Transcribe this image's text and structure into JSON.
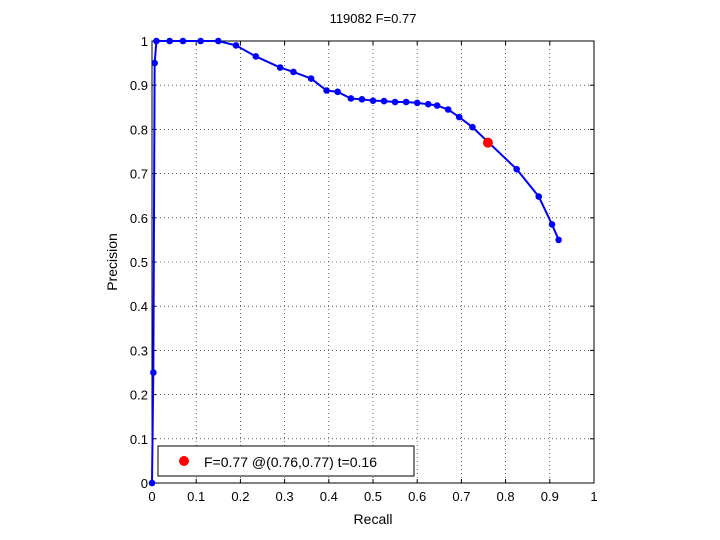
{
  "chart_data": {
    "type": "line",
    "title": "119082 F=0.77",
    "xlabel": "Recall",
    "ylabel": "Precision",
    "xlim": [
      0,
      1
    ],
    "ylim": [
      0,
      1
    ],
    "grid": true,
    "xticks": [
      "0",
      "0.1",
      "0.2",
      "0.3",
      "0.4",
      "0.5",
      "0.6",
      "0.7",
      "0.8",
      "0.9",
      "1"
    ],
    "yticks": [
      "0",
      "0.1",
      "0.2",
      "0.3",
      "0.4",
      "0.5",
      "0.6",
      "0.7",
      "0.8",
      "0.9",
      "1"
    ],
    "series": [
      {
        "color": "#0000ff",
        "x": [
          0.0,
          0.003,
          0.006,
          0.01,
          0.04,
          0.07,
          0.11,
          0.15,
          0.19,
          0.235,
          0.29,
          0.32,
          0.36,
          0.395,
          0.42,
          0.45,
          0.475,
          0.5,
          0.525,
          0.55,
          0.575,
          0.6,
          0.625,
          0.645,
          0.67,
          0.695,
          0.725,
          0.825,
          0.875,
          0.905,
          0.92
        ],
        "y": [
          0.0,
          0.25,
          0.95,
          1.0,
          1.0,
          1.0,
          1.0,
          1.0,
          0.99,
          0.965,
          0.94,
          0.93,
          0.915,
          0.888,
          0.885,
          0.87,
          0.868,
          0.865,
          0.864,
          0.862,
          0.862,
          0.86,
          0.857,
          0.854,
          0.845,
          0.828,
          0.805,
          0.71,
          0.648,
          0.585,
          0.55
        ]
      }
    ],
    "best_point": {
      "x": 0.76,
      "y": 0.77,
      "color": "#ff0000"
    },
    "legend": {
      "label": "F=0.77 @(0.76,0.77) t=0.16",
      "placement": "bottom-left",
      "marker_color": "#ff0000"
    }
  }
}
